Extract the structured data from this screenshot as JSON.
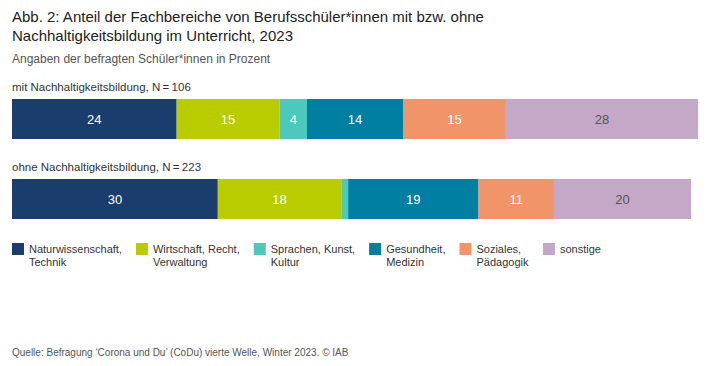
{
  "chart_data": {
    "type": "bar",
    "orientation": "horizontal",
    "stacked": true,
    "title": "Abb. 2: Anteil der Fachbereiche von Berufsschüler*innen mit bzw. ohne\nNachhaltigkeitsbildung im Unterricht, 2023",
    "subtitle": "Angaben der befragten Schüler*innen in Prozent",
    "annotations": [
      "Quelle: Befragung ‘Corona und Du’ (CoDu)  vierte Welle, Winter 2023.  © IAB"
    ],
    "categories": [
      "mit Nachhaltigkeitsbildung, N = 106",
      "ohne Nachhaltigkeitsbildung, N = 223"
    ],
    "series": [
      {
        "name": "Naturwissenschaft,\nTechnik",
        "color": "#1b3d6e",
        "values": [
          24,
          30
        ]
      },
      {
        "name": "Wirtschaft, Recht,\nVerwaltung",
        "color": "#b8cc00",
        "values": [
          15,
          18
        ]
      },
      {
        "name": "Sprachen, Kunst,\nKultur",
        "color": "#4dc8bc",
        "values": [
          4,
          1
        ]
      },
      {
        "name": "Gesundheit,\nMedizin",
        "color": "#007fa3",
        "values": [
          14,
          19
        ]
      },
      {
        "name": "Soziales,\nPädagogik",
        "color": "#f0956a",
        "values": [
          15,
          11
        ]
      },
      {
        "name": "sonstige",
        "color": "#c5a8c8",
        "values": [
          28,
          20
        ]
      }
    ],
    "xlim": [
      0,
      100
    ],
    "tick_labels": false,
    "data_labels": true,
    "legend": "bottom"
  }
}
